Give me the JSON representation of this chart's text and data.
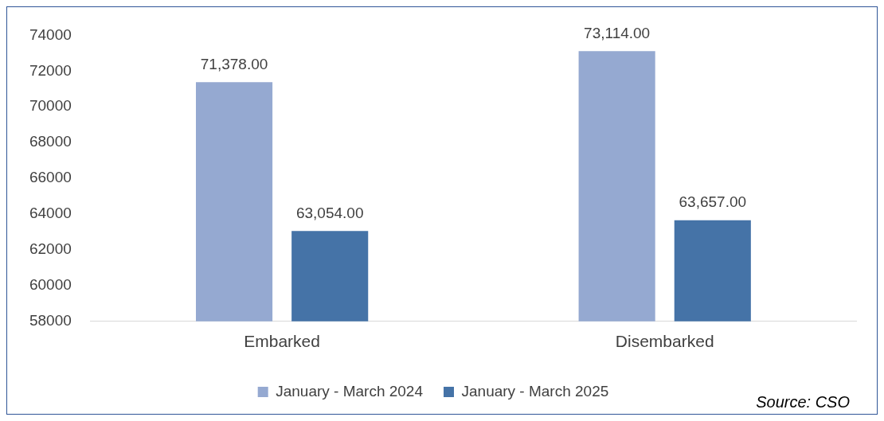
{
  "chart_data": {
    "type": "bar",
    "categories": [
      "Embarked",
      "Disembarked"
    ],
    "series": [
      {
        "name": "January - March 2024",
        "color": "#95a9d1",
        "values": [
          71378,
          73114
        ],
        "value_labels": [
          "71,378.00",
          "73,114.00"
        ]
      },
      {
        "name": "January - March 2025",
        "color": "#4573a7",
        "values": [
          63054,
          63657
        ],
        "value_labels": [
          "63,054.00",
          "63,657.00"
        ]
      }
    ],
    "ylim": [
      58000,
      74000
    ],
    "yticks": [
      58000,
      60000,
      62000,
      64000,
      66000,
      68000,
      70000,
      72000,
      74000
    ],
    "grid": false,
    "legend": "bottom",
    "annotations": [
      "Source: CSO"
    ]
  }
}
